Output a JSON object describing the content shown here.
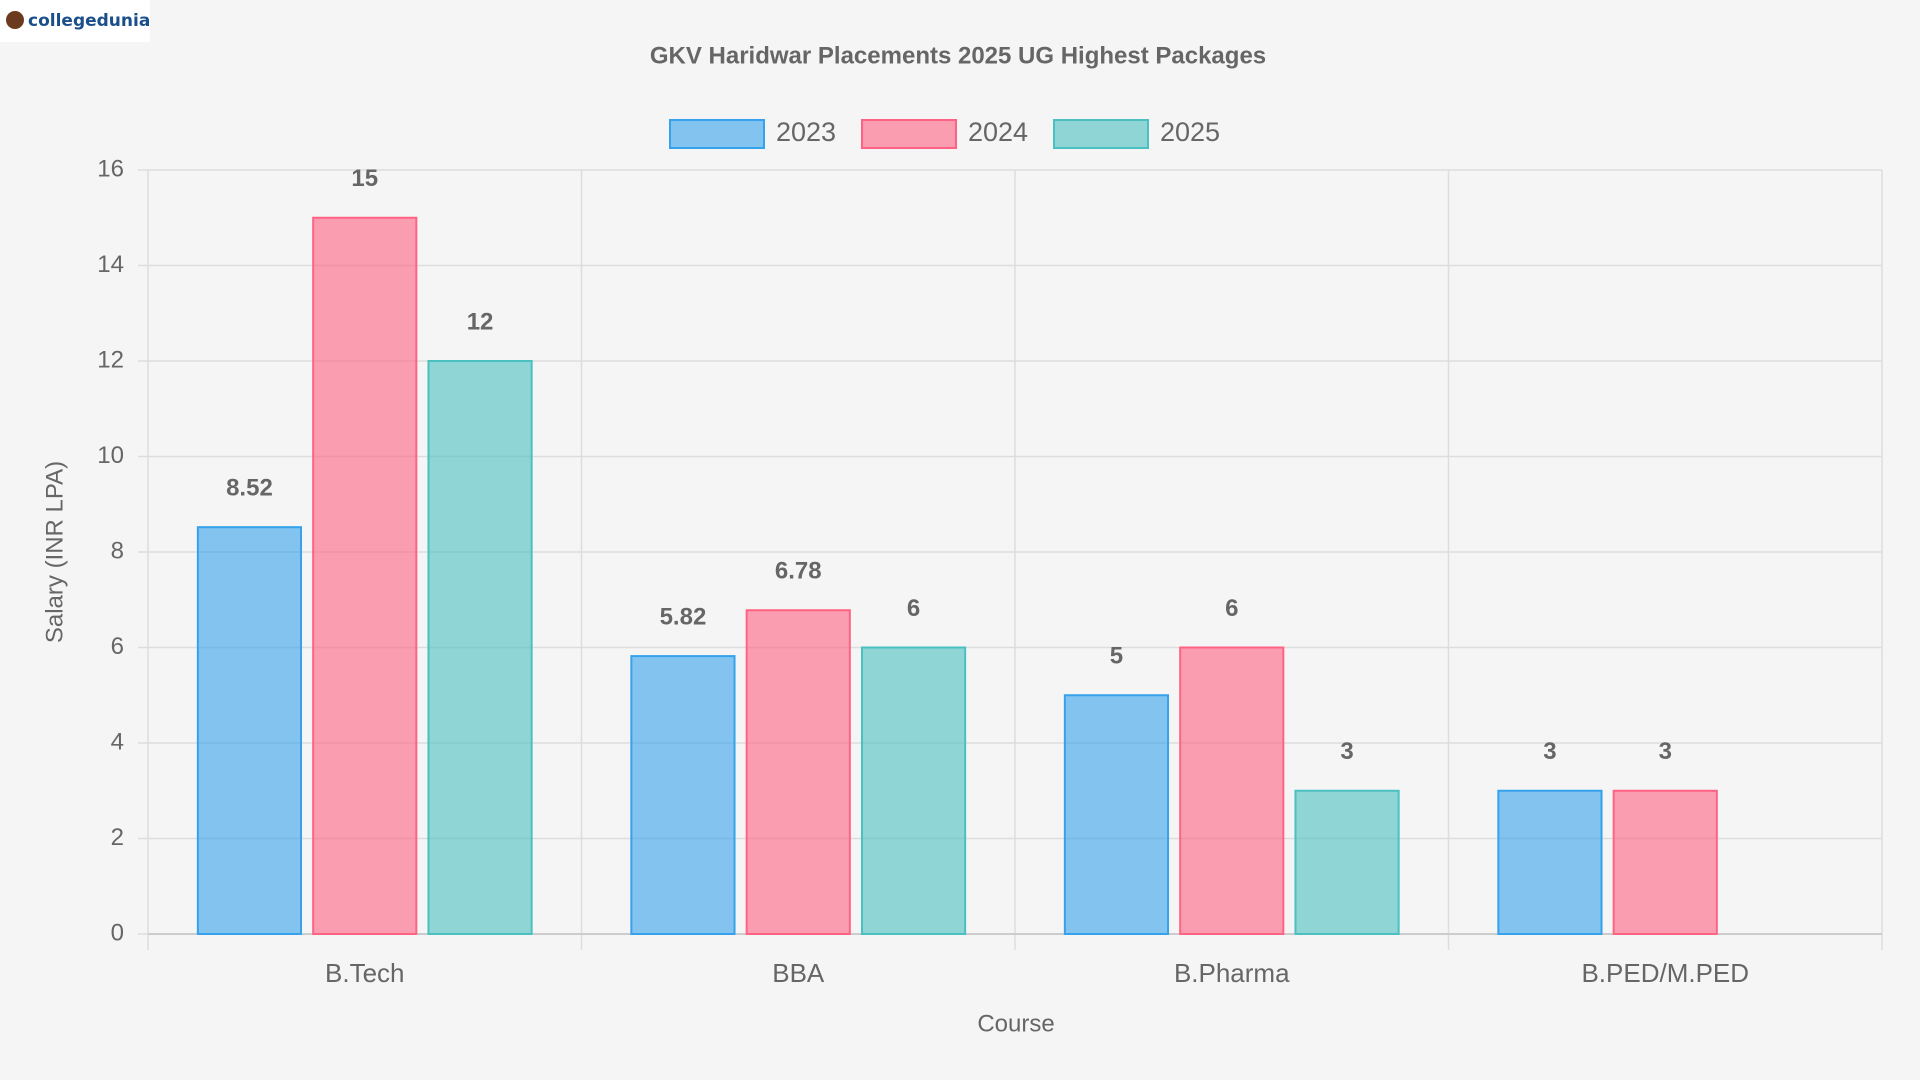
{
  "logo": "collegedunia",
  "chart_data": {
    "type": "bar",
    "title": "GKV Haridwar Placements 2025 UG Highest Packages",
    "x_label": "Course",
    "y_label": "Salary (INR LPA)",
    "categories": [
      "B.Tech",
      "BBA",
      "B.Pharma",
      "B.PED/M.PED"
    ],
    "series": [
      {
        "name": "2023",
        "color": "#36a2eb",
        "values": [
          8.52,
          5.82,
          5,
          3
        ]
      },
      {
        "name": "2024",
        "color": "#ff6384",
        "values": [
          15,
          6.78,
          6,
          3
        ]
      },
      {
        "name": "2025",
        "color": "#4bc0c0",
        "values": [
          12,
          6,
          3,
          null
        ]
      }
    ],
    "ylim": [
      0,
      16
    ],
    "yticks": [
      0,
      2,
      4,
      6,
      8,
      10,
      12,
      14,
      16
    ],
    "grid": true,
    "legend": "top"
  }
}
